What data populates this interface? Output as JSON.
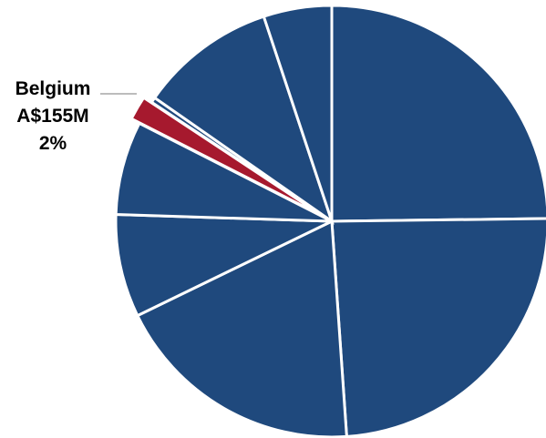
{
  "chart_data": {
    "type": "pie",
    "title": "",
    "slices": [
      {
        "value": 24.8,
        "color": "#1f497d"
      },
      {
        "value": 24.1,
        "color": "#1f497d"
      },
      {
        "value": 18.9,
        "color": "#1f497d"
      },
      {
        "value": 7.7,
        "color": "#1f497d"
      },
      {
        "value": 7.0,
        "color": "#1f497d"
      },
      {
        "label": "Belgium",
        "amount": "A$155M",
        "percent": "2%",
        "value": 1.8,
        "color": "#a6192e",
        "highlighted": true
      },
      {
        "value": 0.4,
        "color": "#1f497d"
      },
      {
        "value": 10.2,
        "color": "#1f497d"
      },
      {
        "value": 5.1,
        "color": "#1f497d"
      }
    ],
    "callout": {
      "label": "Belgium",
      "amount": "A$155M",
      "percent": "2%"
    },
    "legend": "none",
    "slice_separator_color": "#ffffff",
    "leader_line_color": "#a6a6a6"
  }
}
